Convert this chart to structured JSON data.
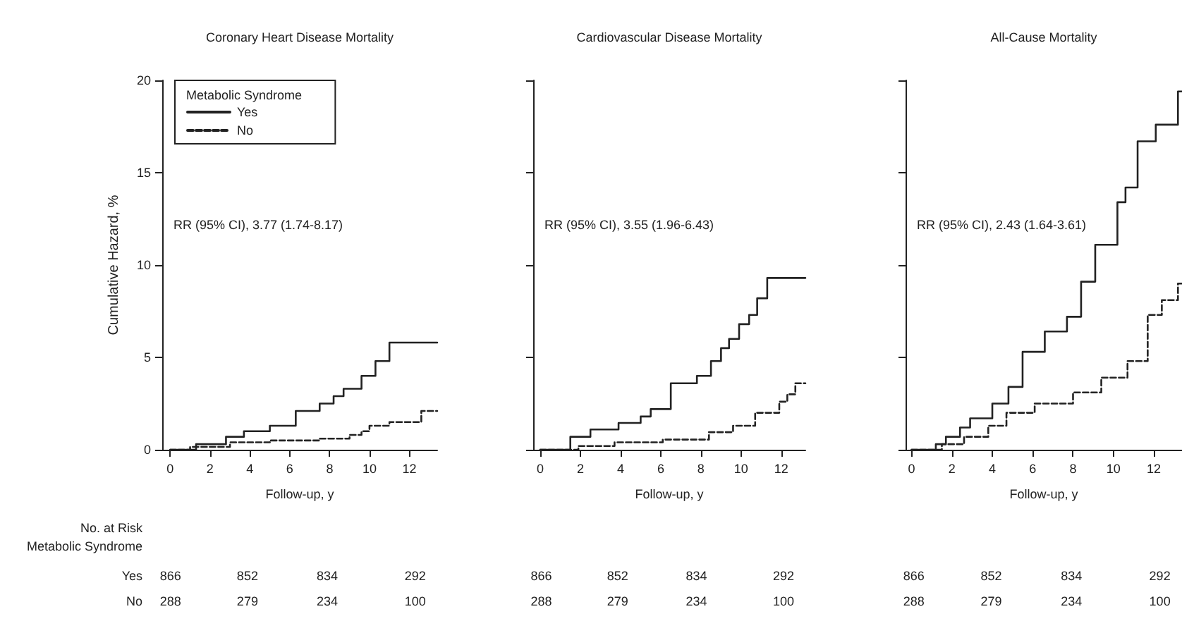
{
  "chart_data": [
    {
      "type": "step",
      "title": "Coronary Heart Disease Mortality",
      "xlabel": "Follow-up, y",
      "ylabel": "Cumulative Hazard, %",
      "legend_title": "Metabolic Syndrome",
      "legend": "top left",
      "marker": "none",
      "grid": false,
      "xlim": [
        -0.4,
        13.4
      ],
      "xticks": [
        0,
        2,
        4,
        6,
        8,
        10,
        12
      ],
      "ylim": [
        0,
        20
      ],
      "yticks": [
        0,
        5,
        10,
        15,
        20
      ],
      "series": [
        {
          "name": "Yes",
          "color": "#222222",
          "line_style": "solid",
          "x": [
            0,
            1.3,
            2.8,
            3.7,
            5.0,
            6.3,
            7.5,
            8.2,
            8.7,
            9.6,
            10.3,
            11.0,
            13.4
          ],
          "values": [
            0,
            0.3,
            0.7,
            1.0,
            1.3,
            2.1,
            2.5,
            2.9,
            3.3,
            4.0,
            4.8,
            5.8,
            5.8
          ]
        },
        {
          "name": "No",
          "color": "#222222",
          "line_style": "dashed",
          "x": [
            0,
            1.0,
            3.0,
            5.0,
            7.5,
            9.0,
            9.6,
            10.0,
            11.0,
            12.6,
            13.4
          ],
          "values": [
            0,
            0.15,
            0.4,
            0.5,
            0.6,
            0.8,
            1.0,
            1.3,
            1.5,
            2.1,
            2.1
          ]
        }
      ],
      "annotations": [
        "RR (95% CI), 3.77 (1.74-8.17)",
        "866",
        "852",
        "834",
        "292",
        "288",
        "279",
        "234",
        "100",
        "No. at Risk",
        "Metabolic Syndrome",
        "Yes",
        "No"
      ]
    },
    {
      "type": "step",
      "title": "Cardiovascular Disease Mortality",
      "xlabel": "Follow-up, y",
      "marker": "none",
      "grid": false,
      "tick_labels": "x",
      "xlim": [
        -0.35,
        13.2
      ],
      "xticks": [
        0,
        2,
        4,
        6,
        8,
        10,
        12
      ],
      "ylim": [
        0,
        20
      ],
      "yticks": [
        0,
        5,
        10,
        15,
        20
      ],
      "series": [
        {
          "color": "#222222",
          "line_style": "solid",
          "x": [
            0,
            1.5,
            2.5,
            3.9,
            5.0,
            5.5,
            6.5,
            7.8,
            8.5,
            9.0,
            9.4,
            9.9,
            10.4,
            10.8,
            11.3,
            13.2
          ],
          "values": [
            0,
            0.7,
            1.1,
            1.45,
            1.8,
            2.2,
            3.6,
            4.0,
            4.8,
            5.5,
            6.0,
            6.8,
            7.3,
            8.2,
            9.3,
            9.3
          ]
        },
        {
          "color": "#222222",
          "line_style": "dashed",
          "x": [
            0,
            1.9,
            3.7,
            6.1,
            8.4,
            9.6,
            10.7,
            11.9,
            12.3,
            12.7,
            13.2
          ],
          "values": [
            0,
            0.2,
            0.4,
            0.55,
            0.95,
            1.3,
            2.0,
            2.6,
            3.0,
            3.6,
            3.6
          ]
        }
      ],
      "annotations": [
        "RR (95% CI), 3.55 (1.96-6.43)",
        "866",
        "852",
        "834",
        "292",
        "288",
        "279",
        "234",
        "100"
      ]
    },
    {
      "type": "step",
      "title": "All-Cause Mortality",
      "xlabel": "Follow-up, y",
      "marker": "none",
      "grid": false,
      "tick_labels": "x",
      "xlim": [
        -0.3,
        13.4
      ],
      "xticks": [
        0,
        2,
        4,
        6,
        8,
        10,
        12
      ],
      "ylim": [
        0,
        20
      ],
      "yticks": [
        0,
        5,
        10,
        15,
        20
      ],
      "series": [
        {
          "color": "#222222",
          "line_style": "solid",
          "x": [
            0,
            1.2,
            1.7,
            2.4,
            2.9,
            4.0,
            4.8,
            5.5,
            6.6,
            7.7,
            8.4,
            9.1,
            10.2,
            10.6,
            11.2,
            12.1,
            13.2,
            13.4
          ],
          "values": [
            0,
            0.3,
            0.7,
            1.2,
            1.7,
            2.5,
            3.4,
            5.3,
            6.4,
            7.2,
            9.1,
            11.1,
            13.4,
            14.2,
            16.7,
            17.6,
            19.4,
            19.4
          ]
        },
        {
          "color": "#222222",
          "line_style": "dashed",
          "x": [
            0,
            1.5,
            2.6,
            3.8,
            4.7,
            6.1,
            8.0,
            9.4,
            10.7,
            11.7,
            12.4,
            13.2,
            13.4
          ],
          "values": [
            0,
            0.3,
            0.7,
            1.3,
            2.0,
            2.5,
            3.1,
            3.9,
            4.8,
            7.3,
            8.1,
            9.0,
            9.0
          ]
        }
      ],
      "annotations": [
        "RR (95% CI), 2.43 (1.64-3.61)",
        "866",
        "852",
        "834",
        "292",
        "288",
        "279",
        "234",
        "100"
      ]
    }
  ]
}
